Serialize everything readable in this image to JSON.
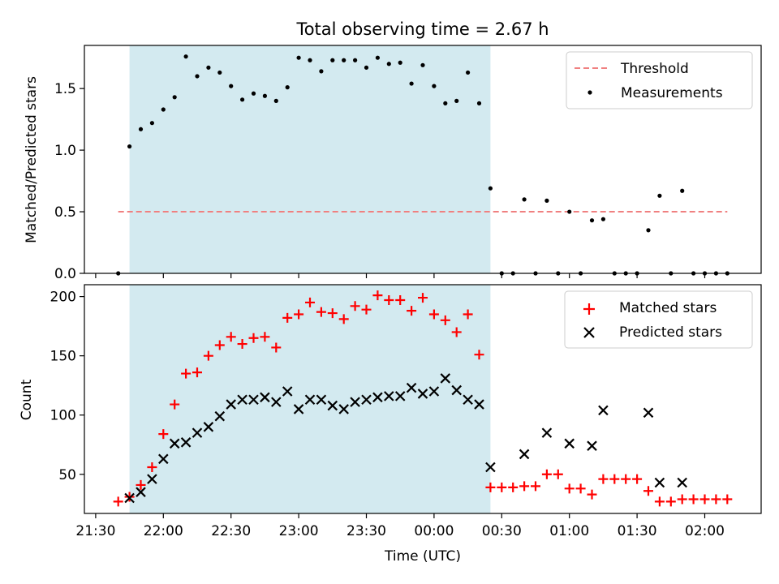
{
  "figure": {
    "title": "Total observing time = 2.67 h"
  },
  "chart_data": [
    {
      "type": "scatter",
      "panel": "top",
      "ylabel": "Matched/Predicted stars",
      "ylim": [
        0,
        1.85
      ],
      "yticks": [
        0.0,
        0.5,
        1.0,
        1.5
      ],
      "ytick_labels": [
        "0.0",
        "0.5",
        "1.0",
        "1.5"
      ],
      "shaded_region": {
        "x_start": "21:45",
        "x_end": "00:25",
        "color": "#d3eaf0"
      },
      "threshold": {
        "name": "Threshold",
        "value": 0.5,
        "x_start": "21:40",
        "x_end": "02:10",
        "color": "#f08080",
        "style": "dashed"
      },
      "series": [
        {
          "name": "Measurements",
          "marker": "dot",
          "color": "#000000",
          "x": [
            "21:40",
            "21:45",
            "21:50",
            "21:55",
            "22:00",
            "22:05",
            "22:10",
            "22:15",
            "22:20",
            "22:25",
            "22:30",
            "22:35",
            "22:40",
            "22:45",
            "22:50",
            "22:55",
            "23:00",
            "23:05",
            "23:10",
            "23:15",
            "23:20",
            "23:25",
            "23:30",
            "23:35",
            "23:40",
            "23:45",
            "23:50",
            "23:55",
            "00:00",
            "00:05",
            "00:10",
            "00:15",
            "00:20",
            "00:25",
            "00:30",
            "00:35",
            "00:40",
            "00:45",
            "00:50",
            "00:55",
            "01:00",
            "01:05",
            "01:10",
            "01:15",
            "01:20",
            "01:25",
            "01:30",
            "01:35",
            "01:40",
            "01:45",
            "01:50",
            "01:55",
            "02:00",
            "02:05",
            "02:10"
          ],
          "y": [
            0.0,
            1.03,
            1.17,
            1.22,
            1.33,
            1.43,
            1.76,
            1.6,
            1.67,
            1.63,
            1.52,
            1.41,
            1.46,
            1.44,
            1.4,
            1.51,
            1.75,
            1.73,
            1.64,
            1.73,
            1.73,
            1.73,
            1.67,
            1.75,
            1.7,
            1.71,
            1.54,
            1.69,
            1.52,
            1.38,
            1.4,
            1.63,
            1.38,
            0.69,
            0.0,
            0.0,
            0.6,
            0.0,
            0.59,
            0.0,
            0.5,
            0.0,
            0.43,
            0.44,
            0.0,
            0.0,
            0.0,
            0.35,
            0.63,
            0.0,
            0.67,
            0.0,
            0.0,
            0.0,
            0.0
          ]
        }
      ],
      "legend": {
        "position": "top-right",
        "entries": [
          "Threshold",
          "Measurements"
        ]
      }
    },
    {
      "type": "scatter",
      "panel": "bottom",
      "xlabel": "Time (UTC)",
      "ylabel": "Count",
      "ylim": [
        17,
        210
      ],
      "yticks": [
        50,
        100,
        150,
        200
      ],
      "ytick_labels": [
        "50",
        "100",
        "150",
        "200"
      ],
      "xlim": [
        "21:25",
        "02:25"
      ],
      "xticks": [
        "21:30",
        "22:00",
        "22:30",
        "23:00",
        "23:30",
        "00:00",
        "00:30",
        "01:00",
        "01:30",
        "02:00"
      ],
      "shaded_region": {
        "x_start": "21:45",
        "x_end": "00:25",
        "color": "#d3eaf0"
      },
      "series": [
        {
          "name": "Matched stars",
          "marker": "plus",
          "color": "#ff0000",
          "x": [
            "21:40",
            "21:45",
            "21:50",
            "21:55",
            "22:00",
            "22:05",
            "22:10",
            "22:15",
            "22:20",
            "22:25",
            "22:30",
            "22:35",
            "22:40",
            "22:45",
            "22:50",
            "22:55",
            "23:00",
            "23:05",
            "23:10",
            "23:15",
            "23:20",
            "23:25",
            "23:30",
            "23:35",
            "23:40",
            "23:45",
            "23:50",
            "23:55",
            "00:00",
            "00:05",
            "00:10",
            "00:15",
            "00:20",
            "00:25",
            "00:30",
            "00:35",
            "00:40",
            "00:45",
            "00:50",
            "00:55",
            "01:00",
            "01:05",
            "01:10",
            "01:15",
            "01:20",
            "01:25",
            "01:30",
            "01:35",
            "01:40",
            "01:45",
            "01:50",
            "01:55",
            "02:00",
            "02:05",
            "02:10"
          ],
          "y": [
            27,
            31,
            41,
            56,
            84,
            109,
            135,
            136,
            150,
            159,
            166,
            160,
            165,
            166,
            157,
            182,
            185,
            195,
            187,
            186,
            181,
            192,
            189,
            201,
            197,
            197,
            188,
            199,
            185,
            180,
            170,
            185,
            151,
            39,
            39,
            39,
            40,
            40,
            50,
            50,
            38,
            38,
            33,
            46,
            46,
            46,
            46,
            36,
            27,
            27,
            29,
            29,
            29,
            29,
            29
          ]
        },
        {
          "name": "Predicted stars",
          "marker": "x",
          "color": "#000000",
          "x": [
            "21:45",
            "21:50",
            "21:55",
            "22:00",
            "22:05",
            "22:10",
            "22:15",
            "22:20",
            "22:25",
            "22:30",
            "22:35",
            "22:40",
            "22:45",
            "22:50",
            "22:55",
            "23:00",
            "23:05",
            "23:10",
            "23:15",
            "23:20",
            "23:25",
            "23:30",
            "23:35",
            "23:40",
            "23:45",
            "23:50",
            "23:55",
            "00:00",
            "00:05",
            "00:10",
            "00:15",
            "00:20",
            "00:25",
            "00:40",
            "00:50",
            "01:00",
            "01:10",
            "01:15",
            "01:35",
            "01:40",
            "01:50"
          ],
          "y": [
            30,
            35,
            46,
            63,
            76,
            77,
            85,
            90,
            99,
            109,
            113,
            113,
            115,
            111,
            120,
            105,
            113,
            113,
            108,
            105,
            111,
            113,
            115,
            116,
            116,
            123,
            118,
            120,
            131,
            121,
            113,
            109,
            56,
            67,
            85,
            76,
            74,
            104,
            102,
            43,
            43
          ]
        }
      ],
      "legend": {
        "position": "top-right",
        "entries": [
          "Matched stars",
          "Predicted stars"
        ]
      }
    }
  ]
}
